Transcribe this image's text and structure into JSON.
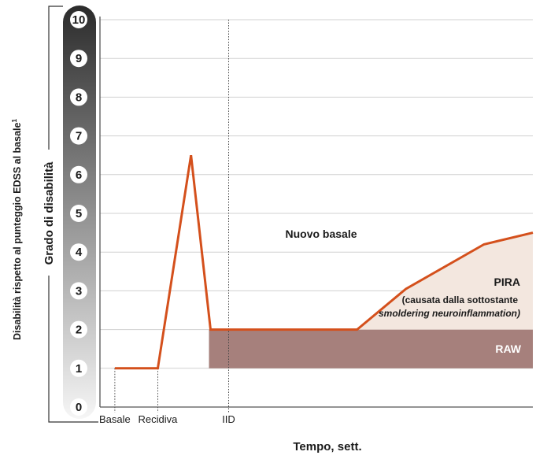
{
  "chart_data": {
    "type": "line",
    "ylim": [
      0,
      10
    ],
    "y_ticks": [
      "0",
      "1",
      "2",
      "3",
      "4",
      "5",
      "6",
      "7",
      "8",
      "9",
      "10"
    ],
    "x_markers": [
      "Basale",
      "Recidiva",
      "IID"
    ],
    "xlabel": "Tempo, sett.",
    "ylabel_inner": "Grado di disabilità",
    "ylabel_outer": "Disabilità rispetto al punteggio EDSS al basale",
    "ylabel_outer_sup": "1",
    "series": [
      {
        "x": [
          0.06,
          0.28,
          0.45,
          0.55,
          1.05,
          1.3,
          1.55,
          1.95,
          2.2
        ],
        "values": [
          1.0,
          1.0,
          6.5,
          2.0,
          2.0,
          2.0,
          3.05,
          4.2,
          4.5
        ]
      }
    ],
    "regions": {
      "raw": {
        "label": "RAW",
        "from": 1.0,
        "to": 2.0
      },
      "pira": {
        "label": "PIRA",
        "sub1": "(causata dalla sottostante",
        "sub2": "smoldering neuroinflammation)"
      },
      "new_baseline": {
        "label": "Nuovo basale"
      }
    },
    "grid": true,
    "colors": {
      "line": "#d4501c",
      "raw_fill": "#a6807c",
      "pira_fill": "#f3e7df",
      "grid": "#d0d0d0",
      "axis": "#555555"
    }
  }
}
